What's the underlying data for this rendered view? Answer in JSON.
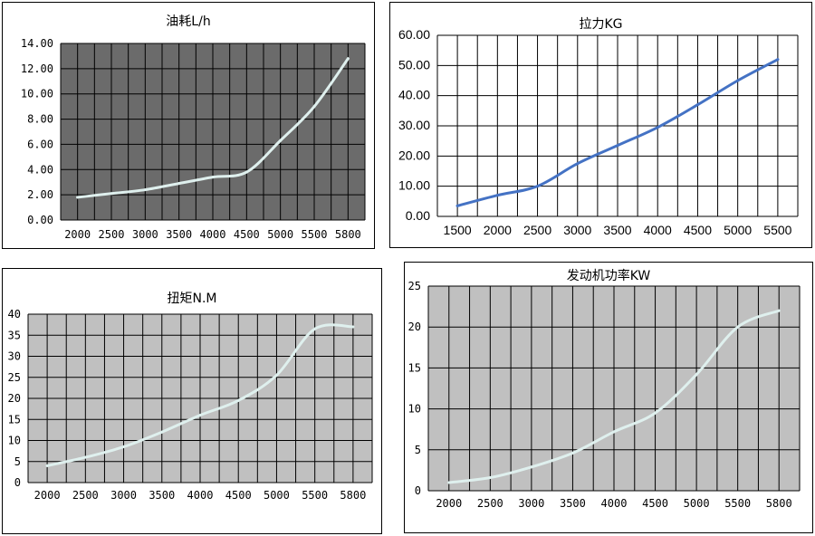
{
  "chart_data": [
    {
      "id": "fuel",
      "type": "line",
      "title": "油耗L/h",
      "ylim": [
        0,
        14
      ],
      "yticks": [
        "0.00",
        "2.00",
        "4.00",
        "6.00",
        "8.00",
        "10.00",
        "12.00",
        "14.00"
      ],
      "xticks": [
        "2000",
        "2500",
        "3000",
        "3500",
        "4000",
        "4500",
        "5000",
        "5500",
        "5800"
      ],
      "x": [
        2000,
        2500,
        3000,
        3500,
        4000,
        4500,
        5000,
        5500,
        5800
      ],
      "values": [
        1.8,
        2.1,
        2.4,
        2.9,
        3.4,
        3.8,
        6.3,
        9.0,
        12.8
      ],
      "plot_color": "#6b6b6b",
      "line_color": "#dff0ee"
    },
    {
      "id": "pull",
      "type": "line",
      "title": "拉力KG",
      "ylim": [
        0,
        60
      ],
      "yticks": [
        "0.00",
        "10.00",
        "20.00",
        "30.00",
        "40.00",
        "50.00",
        "60.00"
      ],
      "xticks": [
        "1500",
        "2000",
        "2500",
        "3000",
        "3500",
        "4000",
        "4500",
        "5000",
        "5500"
      ],
      "x": [
        1500,
        2000,
        2500,
        3000,
        3500,
        4000,
        4500,
        5000,
        5500
      ],
      "values": [
        3.5,
        7.0,
        10.0,
        17.5,
        23.5,
        29.5,
        37.0,
        45.0,
        52.0
      ],
      "plot_color": "#ffffff",
      "line_color": "#4472c4"
    },
    {
      "id": "torque",
      "type": "line",
      "title": "扭矩N.M",
      "ylim": [
        0,
        40
      ],
      "yticks": [
        "0",
        "5",
        "10",
        "15",
        "20",
        "25",
        "30",
        "35",
        "40"
      ],
      "xticks": [
        "2000",
        "2500",
        "3000",
        "3500",
        "4000",
        "4500",
        "5000",
        "5500",
        "5800"
      ],
      "x": [
        2000,
        2500,
        3000,
        3500,
        4000,
        4500,
        5000,
        5500,
        5800
      ],
      "values": [
        4.0,
        6.0,
        8.5,
        12.0,
        16.0,
        19.5,
        25.5,
        36.5,
        37.0
      ],
      "plot_color": "#c0c0c0",
      "line_color": "#dff0ee"
    },
    {
      "id": "power",
      "type": "line",
      "title": "发动机功率KW",
      "ylim": [
        0,
        25
      ],
      "yticks": [
        "0",
        "5",
        "10",
        "15",
        "20",
        "25"
      ],
      "xticks": [
        "2000",
        "2500",
        "3000",
        "3500",
        "4000",
        "4500",
        "5000",
        "5500",
        "5800"
      ],
      "x": [
        2000,
        2500,
        3000,
        3500,
        4000,
        4500,
        5000,
        5500,
        5800
      ],
      "values": [
        1.0,
        1.6,
        2.9,
        4.6,
        7.2,
        9.5,
        14.2,
        20.0,
        22.0
      ],
      "plot_color": "#c0c0c0",
      "line_color": "#dff0ee"
    }
  ]
}
